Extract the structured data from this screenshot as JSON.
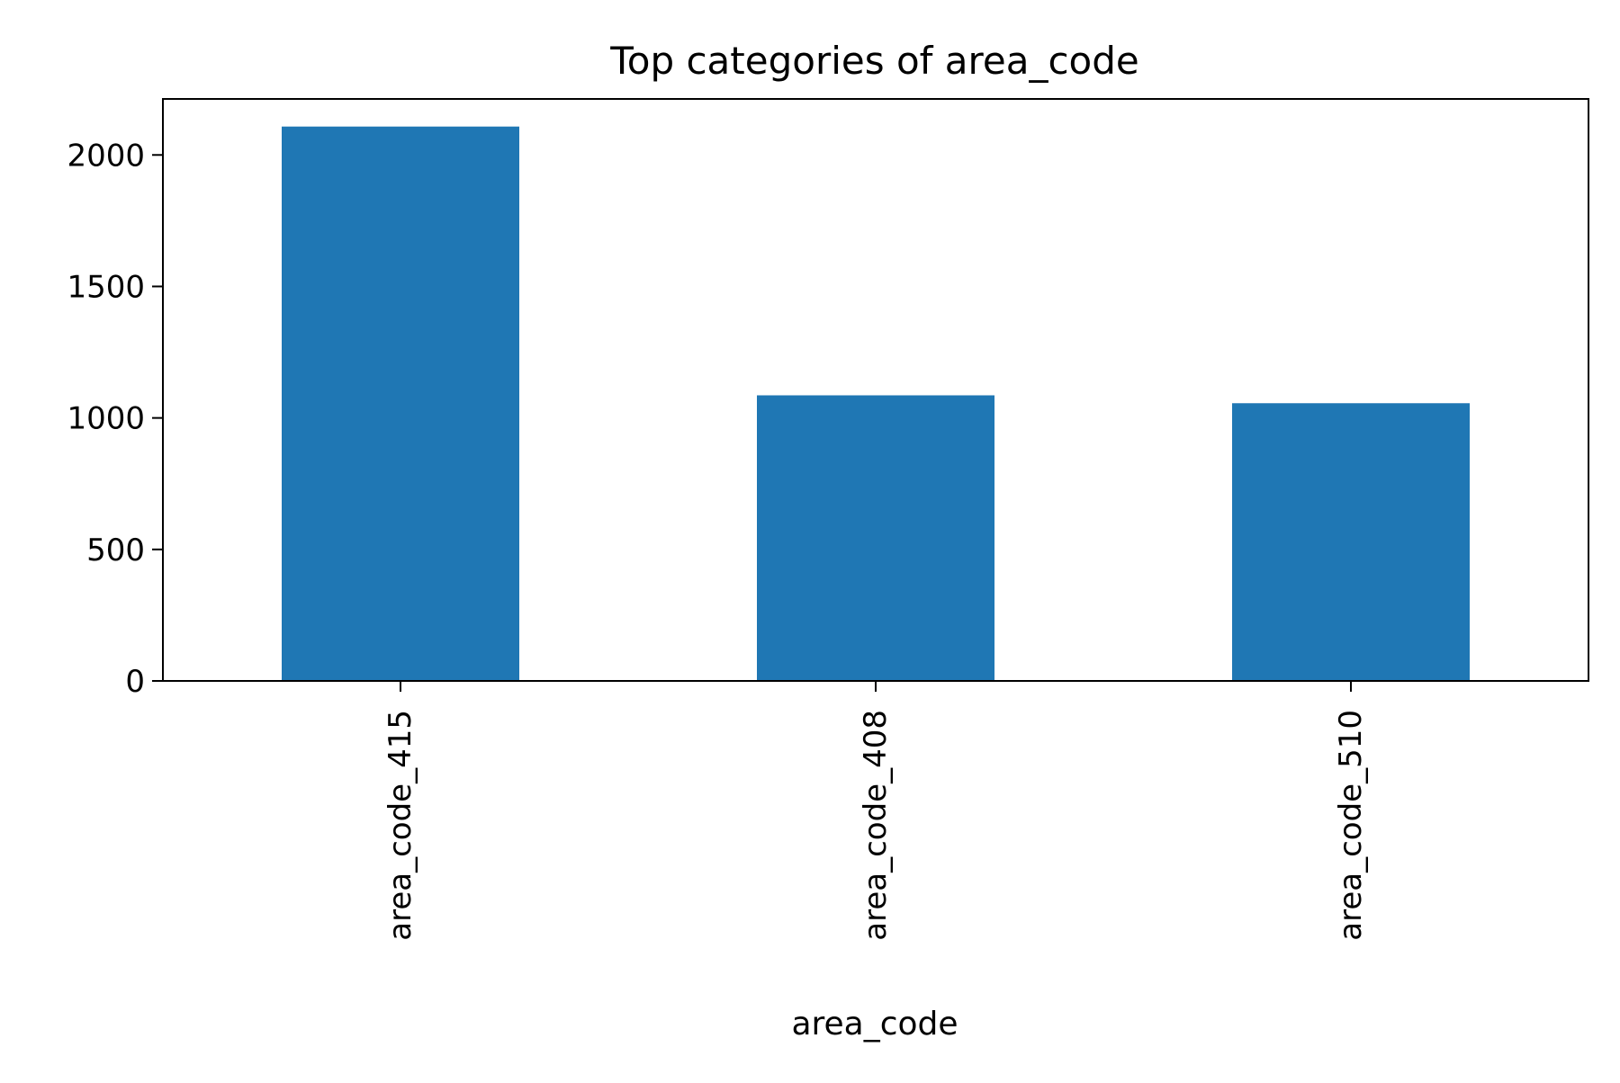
{
  "chart_data": {
    "type": "bar",
    "title": "Top categories of area_code",
    "xlabel": "area_code",
    "ylabel": "",
    "categories": [
      "area_code_415",
      "area_code_408",
      "area_code_510"
    ],
    "values": [
      2108,
      1086,
      1056
    ],
    "ylim": [
      0,
      2213
    ],
    "yticks": [
      0,
      500,
      1000,
      1500,
      2000
    ],
    "grid": false,
    "legend": "none",
    "colors": {
      "bar": "#1f77b4",
      "axis": "#000000",
      "background": "#ffffff"
    }
  }
}
